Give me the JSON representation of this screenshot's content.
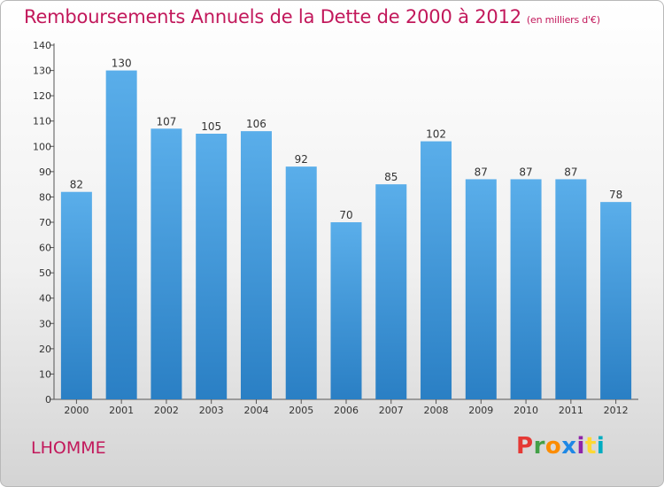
{
  "header": {
    "title": "Remboursements Annuels de la Dette de 2000 à 2012",
    "subtitle": "(en milliers d'€)"
  },
  "footer": {
    "place": "LHOMME",
    "logo_text": "Proxiti"
  },
  "colors": {
    "title": "#c2185b",
    "bar_top": "#5aaeea",
    "bar_bottom": "#2a7fc4",
    "axis": "#555555",
    "logo": [
      "#e53935",
      "#43a047",
      "#fb8c00",
      "#1e88e5",
      "#8e24aa",
      "#fdd835",
      "#00acc1"
    ]
  },
  "chart_data": {
    "type": "bar",
    "title": "Remboursements Annuels de la Dette de 2000 à 2012",
    "subtitle": "(en milliers d'€)",
    "xlabel": "",
    "ylabel": "",
    "categories": [
      "2000",
      "2001",
      "2002",
      "2003",
      "2004",
      "2005",
      "2006",
      "2007",
      "2008",
      "2009",
      "2010",
      "2011",
      "2012"
    ],
    "values": [
      82,
      130,
      107,
      105,
      106,
      92,
      70,
      85,
      102,
      87,
      87,
      87,
      78
    ],
    "ylim": [
      0,
      140
    ],
    "yticks": [
      0,
      10,
      20,
      30,
      40,
      50,
      60,
      70,
      80,
      90,
      100,
      110,
      120,
      130,
      140
    ],
    "grid": false,
    "data_labels": true
  }
}
